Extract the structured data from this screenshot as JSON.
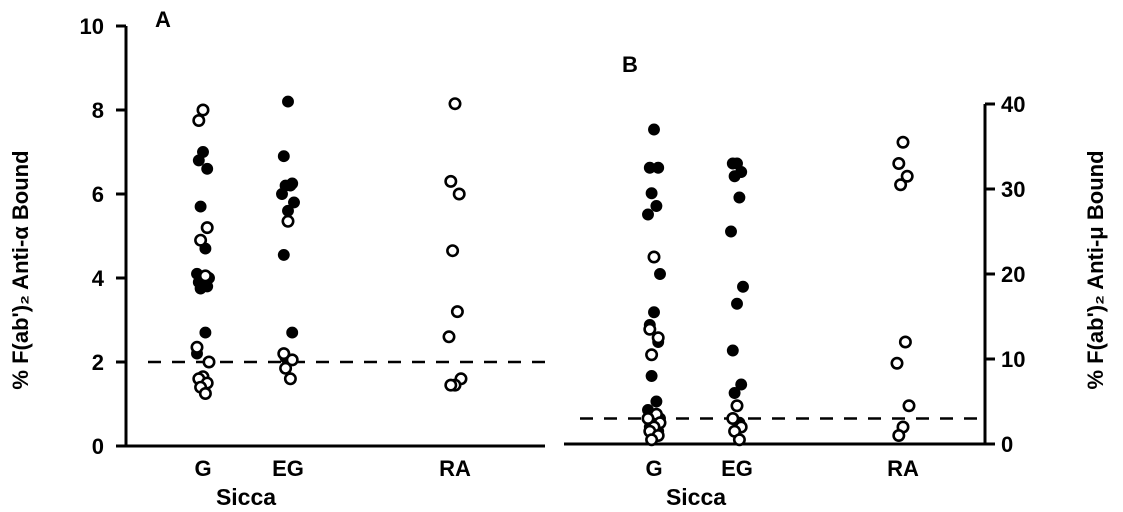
{
  "chart_data": [
    {
      "panel": "A",
      "type": "scatter",
      "title": "",
      "ylabel": "% F(ab')₂ Anti-α Bound",
      "ylim": [
        0,
        10
      ],
      "yticks": [
        0,
        2,
        4,
        6,
        8,
        10
      ],
      "yaxis_side": "left",
      "categories": [
        "G",
        "EG",
        "RA"
      ],
      "group_label": "Sicca",
      "group_spans": [
        "G",
        "EG"
      ],
      "threshold": 2.0,
      "grid": false,
      "series": [
        {
          "marker": "filled",
          "points": [
            {
              "cat": "G",
              "y": 7.0
            },
            {
              "cat": "G",
              "y": 6.8
            },
            {
              "cat": "G",
              "y": 6.6
            },
            {
              "cat": "G",
              "y": 5.7
            },
            {
              "cat": "G",
              "y": 4.7
            },
            {
              "cat": "G",
              "y": 4.1
            },
            {
              "cat": "G",
              "y": 4.0
            },
            {
              "cat": "G",
              "y": 3.95
            },
            {
              "cat": "G",
              "y": 3.9
            },
            {
              "cat": "G",
              "y": 3.8
            },
            {
              "cat": "G",
              "y": 3.75
            },
            {
              "cat": "G",
              "y": 2.7
            },
            {
              "cat": "G",
              "y": 2.2
            },
            {
              "cat": "EG",
              "y": 8.2
            },
            {
              "cat": "EG",
              "y": 6.9
            },
            {
              "cat": "EG",
              "y": 6.25
            },
            {
              "cat": "EG",
              "y": 6.2
            },
            {
              "cat": "EG",
              "y": 6.2
            },
            {
              "cat": "EG",
              "y": 6.0
            },
            {
              "cat": "EG",
              "y": 5.8
            },
            {
              "cat": "EG",
              "y": 5.6
            },
            {
              "cat": "EG",
              "y": 4.55
            },
            {
              "cat": "EG",
              "y": 2.7
            },
            {
              "cat": "EG",
              "y": 2.1
            }
          ]
        },
        {
          "marker": "open",
          "points": [
            {
              "cat": "G",
              "y": 8.0
            },
            {
              "cat": "G",
              "y": 7.75
            },
            {
              "cat": "G",
              "y": 5.2
            },
            {
              "cat": "G",
              "y": 4.9
            },
            {
              "cat": "G",
              "y": 4.05
            },
            {
              "cat": "G",
              "y": 2.35
            },
            {
              "cat": "G",
              "y": 2.0
            },
            {
              "cat": "G",
              "y": 1.65
            },
            {
              "cat": "G",
              "y": 1.6
            },
            {
              "cat": "G",
              "y": 1.5
            },
            {
              "cat": "G",
              "y": 1.4
            },
            {
              "cat": "G",
              "y": 1.25
            },
            {
              "cat": "EG",
              "y": 5.35
            },
            {
              "cat": "EG",
              "y": 2.2
            },
            {
              "cat": "EG",
              "y": 2.05
            },
            {
              "cat": "EG",
              "y": 1.85
            },
            {
              "cat": "EG",
              "y": 1.6
            },
            {
              "cat": "RA",
              "y": 8.15
            },
            {
              "cat": "RA",
              "y": 6.3
            },
            {
              "cat": "RA",
              "y": 6.0
            },
            {
              "cat": "RA",
              "y": 4.65
            },
            {
              "cat": "RA",
              "y": 3.2
            },
            {
              "cat": "RA",
              "y": 2.6
            },
            {
              "cat": "RA",
              "y": 1.6
            },
            {
              "cat": "RA",
              "y": 1.45
            },
            {
              "cat": "RA",
              "y": 1.45
            }
          ]
        }
      ]
    },
    {
      "panel": "B",
      "type": "scatter",
      "title": "",
      "ylabel": "% F(ab')₂ Anti-μ Bound",
      "ylim": [
        0,
        40
      ],
      "yticks": [
        0,
        10,
        20,
        30,
        40
      ],
      "yaxis_side": "right",
      "categories": [
        "G",
        "EG",
        "RA"
      ],
      "group_label": "Sicca",
      "group_spans": [
        "G",
        "EG"
      ],
      "threshold": 3.0,
      "grid": false,
      "series": [
        {
          "marker": "filled",
          "points": [
            {
              "cat": "G",
              "y": 37.0
            },
            {
              "cat": "G",
              "y": 32.5
            },
            {
              "cat": "G",
              "y": 32.5
            },
            {
              "cat": "G",
              "y": 29.5
            },
            {
              "cat": "G",
              "y": 28.0
            },
            {
              "cat": "G",
              "y": 27.0
            },
            {
              "cat": "G",
              "y": 20.0
            },
            {
              "cat": "G",
              "y": 15.5
            },
            {
              "cat": "G",
              "y": 14.0
            },
            {
              "cat": "G",
              "y": 12.0
            },
            {
              "cat": "G",
              "y": 8.0
            },
            {
              "cat": "G",
              "y": 5.0
            },
            {
              "cat": "G",
              "y": 4.0
            },
            {
              "cat": "G",
              "y": 3.0
            },
            {
              "cat": "G",
              "y": 2.5
            },
            {
              "cat": "G",
              "y": 2.0
            },
            {
              "cat": "G",
              "y": 1.5
            },
            {
              "cat": "EG",
              "y": 33.0
            },
            {
              "cat": "EG",
              "y": 33.0
            },
            {
              "cat": "EG",
              "y": 32.0
            },
            {
              "cat": "EG",
              "y": 31.5
            },
            {
              "cat": "EG",
              "y": 29.0
            },
            {
              "cat": "EG",
              "y": 25.0
            },
            {
              "cat": "EG",
              "y": 18.5
            },
            {
              "cat": "EG",
              "y": 16.5
            },
            {
              "cat": "EG",
              "y": 11.0
            },
            {
              "cat": "EG",
              "y": 7.0
            },
            {
              "cat": "EG",
              "y": 6.0
            },
            {
              "cat": "EG",
              "y": 2.5
            }
          ]
        },
        {
          "marker": "open",
          "points": [
            {
              "cat": "G",
              "y": 22.0
            },
            {
              "cat": "G",
              "y": 13.5
            },
            {
              "cat": "G",
              "y": 12.5
            },
            {
              "cat": "G",
              "y": 10.5
            },
            {
              "cat": "G",
              "y": 3.5
            },
            {
              "cat": "G",
              "y": 3.0
            },
            {
              "cat": "G",
              "y": 2.5
            },
            {
              "cat": "G",
              "y": 2.0
            },
            {
              "cat": "G",
              "y": 1.5
            },
            {
              "cat": "G",
              "y": 1.0
            },
            {
              "cat": "G",
              "y": 0.5
            },
            {
              "cat": "EG",
              "y": 4.5
            },
            {
              "cat": "EG",
              "y": 3.0
            },
            {
              "cat": "EG",
              "y": 2.0
            },
            {
              "cat": "EG",
              "y": 1.5
            },
            {
              "cat": "EG",
              "y": 0.5
            },
            {
              "cat": "RA",
              "y": 35.5
            },
            {
              "cat": "RA",
              "y": 33.0
            },
            {
              "cat": "RA",
              "y": 31.5
            },
            {
              "cat": "RA",
              "y": 30.5
            },
            {
              "cat": "RA",
              "y": 12.0
            },
            {
              "cat": "RA",
              "y": 9.5
            },
            {
              "cat": "RA",
              "y": 4.5
            },
            {
              "cat": "RA",
              "y": 2.0
            },
            {
              "cat": "RA",
              "y": 1.0
            }
          ]
        }
      ]
    }
  ]
}
